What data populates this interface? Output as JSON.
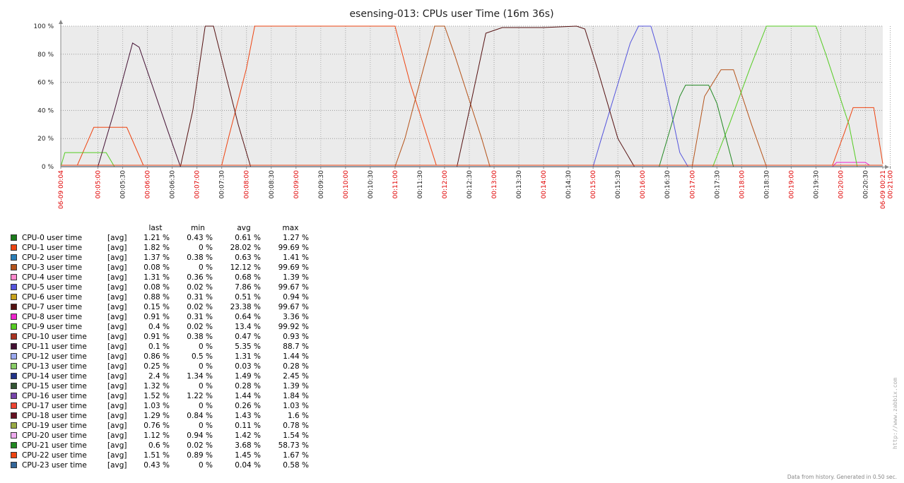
{
  "chart_data": {
    "type": "line",
    "title": "esensing-013: CPUs user Time (16m 36s)",
    "ylim": [
      0,
      100
    ],
    "y_ticks": [
      "0 %",
      "20 %",
      "40 %",
      "60 %",
      "80 %",
      "100 %"
    ],
    "x_range_seconds": [
      "00:04:15",
      "00:20:51"
    ],
    "x_ticks": [
      {
        "label": "06-09 00:04",
        "red": true
      },
      {
        "label": "00:05:00",
        "red": true
      },
      {
        "label": "00:05:30",
        "red": false
      },
      {
        "label": "00:06:00",
        "red": true
      },
      {
        "label": "00:06:30",
        "red": false
      },
      {
        "label": "00:07:00",
        "red": true
      },
      {
        "label": "00:07:30",
        "red": false
      },
      {
        "label": "00:08:00",
        "red": true
      },
      {
        "label": "00:08:30",
        "red": false
      },
      {
        "label": "00:09:00",
        "red": true
      },
      {
        "label": "00:09:30",
        "red": false
      },
      {
        "label": "00:10:00",
        "red": true
      },
      {
        "label": "00:10:30",
        "red": false
      },
      {
        "label": "00:11:00",
        "red": true
      },
      {
        "label": "00:11:30",
        "red": false
      },
      {
        "label": "00:12:00",
        "red": true
      },
      {
        "label": "00:12:30",
        "red": false
      },
      {
        "label": "00:13:00",
        "red": true
      },
      {
        "label": "00:13:30",
        "red": false
      },
      {
        "label": "00:14:00",
        "red": true
      },
      {
        "label": "00:14:30",
        "red": false
      },
      {
        "label": "00:15:00",
        "red": true
      },
      {
        "label": "00:15:30",
        "red": false
      },
      {
        "label": "00:16:00",
        "red": true
      },
      {
        "label": "00:16:30",
        "red": false
      },
      {
        "label": "00:17:00",
        "red": true
      },
      {
        "label": "00:17:30",
        "red": false
      },
      {
        "label": "00:18:00",
        "red": true
      },
      {
        "label": "00:18:30",
        "red": false
      },
      {
        "label": "00:19:00",
        "red": true
      },
      {
        "label": "00:19:30",
        "red": false
      },
      {
        "label": "00:20:00",
        "red": true
      },
      {
        "label": "00:20:30",
        "red": false
      },
      {
        "label": "00:21:00",
        "red": true
      },
      {
        "label": "06-09 00:21",
        "red": true
      }
    ],
    "grid": true,
    "series": [
      {
        "name": "CPU-0 user time",
        "color": "#1a7a1a",
        "points": [
          [
            "00:04:15",
            1
          ],
          [
            "00:20:51",
            1
          ]
        ]
      },
      {
        "name": "CPU-1 user time",
        "color": "#ee4411",
        "points": [
          [
            "00:04:15",
            1
          ],
          [
            "00:04:35",
            1
          ],
          [
            "00:04:55",
            28
          ],
          [
            "00:05:35",
            28
          ],
          [
            "00:05:55",
            1
          ],
          [
            "00:07:30",
            1
          ],
          [
            "00:07:38",
            20
          ],
          [
            "00:08:00",
            70
          ],
          [
            "00:08:10",
            100
          ],
          [
            "00:11:00",
            100
          ],
          [
            "00:11:18",
            60
          ],
          [
            "00:11:50",
            1
          ],
          [
            "00:13:30",
            1
          ],
          [
            "00:14:00",
            1
          ],
          [
            "00:15:00",
            1
          ],
          [
            "00:16:00",
            1
          ],
          [
            "00:19:50",
            1
          ],
          [
            "00:20:05",
            25
          ],
          [
            "00:20:15",
            42
          ],
          [
            "00:20:40",
            42
          ],
          [
            "00:20:51",
            2
          ]
        ]
      },
      {
        "name": "CPU-2 user time",
        "color": "#2a7fb8",
        "points": [
          [
            "00:04:15",
            1
          ],
          [
            "00:20:51",
            1
          ]
        ]
      },
      {
        "name": "CPU-3 user time",
        "color": "#b5531a",
        "points": [
          [
            "00:04:15",
            0
          ],
          [
            "00:11:00",
            0
          ],
          [
            "00:11:12",
            20
          ],
          [
            "00:11:48",
            100
          ],
          [
            "00:12:00",
            100
          ],
          [
            "00:12:12",
            80
          ],
          [
            "00:12:45",
            20
          ],
          [
            "00:12:55",
            0
          ],
          [
            "00:17:00",
            0
          ],
          [
            "00:17:15",
            50
          ],
          [
            "00:17:35",
            69
          ],
          [
            "00:17:50",
            69
          ],
          [
            "00:18:12",
            30
          ],
          [
            "00:18:30",
            0
          ],
          [
            "00:20:51",
            0
          ]
        ]
      },
      {
        "name": "CPU-4 user time",
        "color": "#ff88cc",
        "points": [
          [
            "00:04:15",
            1
          ],
          [
            "00:20:51",
            1
          ]
        ]
      },
      {
        "name": "CPU-5 user time",
        "color": "#5555dd",
        "points": [
          [
            "00:04:15",
            0
          ],
          [
            "00:15:00",
            0
          ],
          [
            "00:15:10",
            20
          ],
          [
            "00:15:45",
            88
          ],
          [
            "00:15:55",
            100
          ],
          [
            "00:16:10",
            100
          ],
          [
            "00:16:20",
            80
          ],
          [
            "00:16:45",
            10
          ],
          [
            "00:16:55",
            0
          ],
          [
            "00:20:51",
            0
          ]
        ]
      },
      {
        "name": "CPU-6 user time",
        "color": "#c9a21a",
        "points": [
          [
            "00:04:15",
            1
          ],
          [
            "00:20:51",
            1
          ]
        ]
      },
      {
        "name": "CPU-7 user time",
        "color": "#551111",
        "points": [
          [
            "00:04:15",
            0
          ],
          [
            "00:06:40",
            0
          ],
          [
            "00:06:55",
            40
          ],
          [
            "00:07:10",
            100
          ],
          [
            "00:07:20",
            100
          ],
          [
            "00:07:50",
            30
          ],
          [
            "00:08:05",
            0
          ],
          [
            "00:12:15",
            0
          ],
          [
            "00:12:30",
            40
          ],
          [
            "00:12:50",
            95
          ],
          [
            "00:13:10",
            99
          ],
          [
            "00:14:00",
            99
          ],
          [
            "00:14:40",
            100
          ],
          [
            "00:14:50",
            98
          ],
          [
            "00:15:05",
            70
          ],
          [
            "00:15:30",
            20
          ],
          [
            "00:15:50",
            0
          ],
          [
            "00:20:51",
            0
          ]
        ]
      },
      {
        "name": "CPU-8 user time",
        "color": "#ee22cc",
        "points": [
          [
            "00:04:15",
            0
          ],
          [
            "00:19:50",
            0
          ],
          [
            "00:19:55",
            3
          ],
          [
            "00:20:30",
            3
          ],
          [
            "00:20:35",
            1
          ],
          [
            "00:20:51",
            1
          ]
        ]
      },
      {
        "name": "CPU-9 user time",
        "color": "#55cc22",
        "points": [
          [
            "00:04:15",
            0
          ],
          [
            "00:04:20",
            10
          ],
          [
            "00:05:10",
            10
          ],
          [
            "00:05:20",
            0
          ],
          [
            "00:17:25",
            0
          ],
          [
            "00:17:45",
            30
          ],
          [
            "00:18:10",
            70
          ],
          [
            "00:18:30",
            100
          ],
          [
            "00:19:30",
            100
          ],
          [
            "00:19:42",
            80
          ],
          [
            "00:20:10",
            30
          ],
          [
            "00:20:20",
            0
          ],
          [
            "00:20:51",
            0
          ]
        ]
      },
      {
        "name": "CPU-10 user time",
        "color": "#aa3322",
        "points": [
          [
            "00:04:15",
            1
          ],
          [
            "00:20:51",
            1
          ]
        ]
      },
      {
        "name": "CPU-11 user time",
        "color": "#441133",
        "points": [
          [
            "00:04:15",
            0
          ],
          [
            "00:05:00",
            0
          ],
          [
            "00:05:20",
            40
          ],
          [
            "00:05:42",
            88
          ],
          [
            "00:05:50",
            85
          ],
          [
            "00:06:25",
            25
          ],
          [
            "00:06:40",
            0
          ],
          [
            "00:20:51",
            0
          ]
        ]
      },
      {
        "name": "CPU-12 user time",
        "color": "#9aa8ee",
        "points": [
          [
            "00:04:15",
            1
          ],
          [
            "00:20:51",
            1
          ]
        ]
      },
      {
        "name": "CPU-13 user time",
        "color": "#88cc66",
        "points": [
          [
            "00:04:15",
            0
          ],
          [
            "00:20:51",
            0
          ]
        ]
      },
      {
        "name": "CPU-14 user time",
        "color": "#223388",
        "points": [
          [
            "00:04:15",
            1
          ],
          [
            "00:20:51",
            1
          ]
        ]
      },
      {
        "name": "CPU-15 user time",
        "color": "#335533",
        "points": [
          [
            "00:04:15",
            0
          ],
          [
            "00:20:51",
            0
          ]
        ]
      },
      {
        "name": "CPU-16 user time",
        "color": "#7744aa",
        "points": [
          [
            "00:04:15",
            1
          ],
          [
            "00:20:51",
            1
          ]
        ]
      },
      {
        "name": "CPU-17 user time",
        "color": "#ee4433",
        "points": [
          [
            "00:04:15",
            0
          ],
          [
            "00:20:51",
            0
          ]
        ]
      },
      {
        "name": "CPU-18 user time",
        "color": "#661122",
        "points": [
          [
            "00:04:15",
            1
          ],
          [
            "00:20:51",
            1
          ]
        ]
      },
      {
        "name": "CPU-19 user time",
        "color": "#99aa44",
        "points": [
          [
            "00:04:15",
            0
          ],
          [
            "00:20:51",
            0
          ]
        ]
      },
      {
        "name": "CPU-20 user time",
        "color": "#eeaaee",
        "points": [
          [
            "00:04:15",
            1
          ],
          [
            "00:20:51",
            1
          ]
        ]
      },
      {
        "name": "CPU-21 user time",
        "color": "#228822",
        "points": [
          [
            "00:04:15",
            0
          ],
          [
            "00:16:20",
            0
          ],
          [
            "00:16:45",
            50
          ],
          [
            "00:16:52",
            58
          ],
          [
            "00:17:20",
            58
          ],
          [
            "00:17:30",
            45
          ],
          [
            "00:17:50",
            0
          ],
          [
            "00:20:51",
            0
          ]
        ]
      },
      {
        "name": "CPU-22 user time",
        "color": "#ee4411",
        "points": [
          [
            "00:04:15",
            1
          ],
          [
            "00:20:51",
            1
          ]
        ]
      },
      {
        "name": "CPU-23 user time",
        "color": "#336699",
        "points": [
          [
            "00:04:15",
            0
          ],
          [
            "00:20:51",
            0
          ]
        ]
      }
    ]
  },
  "legend": {
    "headers": {
      "last": "last",
      "min": "min",
      "avg": "avg",
      "max": "max"
    },
    "func": "[avg]",
    "rows": [
      {
        "name": "CPU-0 user time",
        "color": "#1a7a1a",
        "last": "1.21 %",
        "min": "0.43 %",
        "avg": "0.61 %",
        "max": "1.27 %"
      },
      {
        "name": "CPU-1 user time",
        "color": "#ee4411",
        "last": "1.82 %",
        "min": "0 %",
        "avg": "28.02 %",
        "max": "99.69 %"
      },
      {
        "name": "CPU-2 user time",
        "color": "#2a7fb8",
        "last": "1.37 %",
        "min": "0.38 %",
        "avg": "0.63 %",
        "max": "1.41 %"
      },
      {
        "name": "CPU-3 user time",
        "color": "#b5531a",
        "last": "0.08 %",
        "min": "0 %",
        "avg": "12.12 %",
        "max": "99.69 %"
      },
      {
        "name": "CPU-4 user time",
        "color": "#ff88cc",
        "last": "1.31 %",
        "min": "0.36 %",
        "avg": "0.68 %",
        "max": "1.39 %"
      },
      {
        "name": "CPU-5 user time",
        "color": "#5555dd",
        "last": "0.08 %",
        "min": "0.02 %",
        "avg": "7.86 %",
        "max": "99.67 %"
      },
      {
        "name": "CPU-6 user time",
        "color": "#c9a21a",
        "last": "0.88 %",
        "min": "0.31 %",
        "avg": "0.51 %",
        "max": "0.94 %"
      },
      {
        "name": "CPU-7 user time",
        "color": "#551111",
        "last": "0.15 %",
        "min": "0.02 %",
        "avg": "23.38 %",
        "max": "99.67 %"
      },
      {
        "name": "CPU-8 user time",
        "color": "#ee22cc",
        "last": "0.91 %",
        "min": "0.31 %",
        "avg": "0.64 %",
        "max": "3.36 %"
      },
      {
        "name": "CPU-9 user time",
        "color": "#55cc22",
        "last": "0.4 %",
        "min": "0.02 %",
        "avg": "13.4 %",
        "max": "99.92 %"
      },
      {
        "name": "CPU-10 user time",
        "color": "#aa3322",
        "last": "0.91 %",
        "min": "0.38 %",
        "avg": "0.47 %",
        "max": "0.93 %"
      },
      {
        "name": "CPU-11 user time",
        "color": "#441133",
        "last": "0.1 %",
        "min": "0 %",
        "avg": "5.35 %",
        "max": "88.7 %"
      },
      {
        "name": "CPU-12 user time",
        "color": "#9aa8ee",
        "last": "0.86 %",
        "min": "0.5 %",
        "avg": "1.31 %",
        "max": "1.44 %"
      },
      {
        "name": "CPU-13 user time",
        "color": "#88cc66",
        "last": "0.25 %",
        "min": "0 %",
        "avg": "0.03 %",
        "max": "0.28 %"
      },
      {
        "name": "CPU-14 user time",
        "color": "#223388",
        "last": "2.4 %",
        "min": "1.34 %",
        "avg": "1.49 %",
        "max": "2.45 %"
      },
      {
        "name": "CPU-15 user time",
        "color": "#335533",
        "last": "1.32 %",
        "min": "0 %",
        "avg": "0.28 %",
        "max": "1.39 %"
      },
      {
        "name": "CPU-16 user time",
        "color": "#7744aa",
        "last": "1.52 %",
        "min": "1.22 %",
        "avg": "1.44 %",
        "max": "1.84 %"
      },
      {
        "name": "CPU-17 user time",
        "color": "#ee4433",
        "last": "1.03 %",
        "min": "0 %",
        "avg": "0.26 %",
        "max": "1.03 %"
      },
      {
        "name": "CPU-18 user time",
        "color": "#661122",
        "last": "1.29 %",
        "min": "0.84 %",
        "avg": "1.43 %",
        "max": "1.6 %"
      },
      {
        "name": "CPU-19 user time",
        "color": "#99aa44",
        "last": "0.76 %",
        "min": "0 %",
        "avg": "0.11 %",
        "max": "0.78 %"
      },
      {
        "name": "CPU-20 user time",
        "color": "#eeaaee",
        "last": "1.12 %",
        "min": "0.94 %",
        "avg": "1.42 %",
        "max": "1.54 %"
      },
      {
        "name": "CPU-21 user time",
        "color": "#228822",
        "last": "0.6 %",
        "min": "0.02 %",
        "avg": "3.68 %",
        "max": "58.73 %"
      },
      {
        "name": "CPU-22 user time",
        "color": "#ee4411",
        "last": "1.51 %",
        "min": "0.89 %",
        "avg": "1.45 %",
        "max": "1.67 %"
      },
      {
        "name": "CPU-23 user time",
        "color": "#336699",
        "last": "0.43 %",
        "min": "0 %",
        "avg": "0.04 %",
        "max": "0.58 %"
      }
    ]
  },
  "footer": "Data from history. Generated in 0.50 sec.",
  "watermark": "http://www.zabbix.com"
}
